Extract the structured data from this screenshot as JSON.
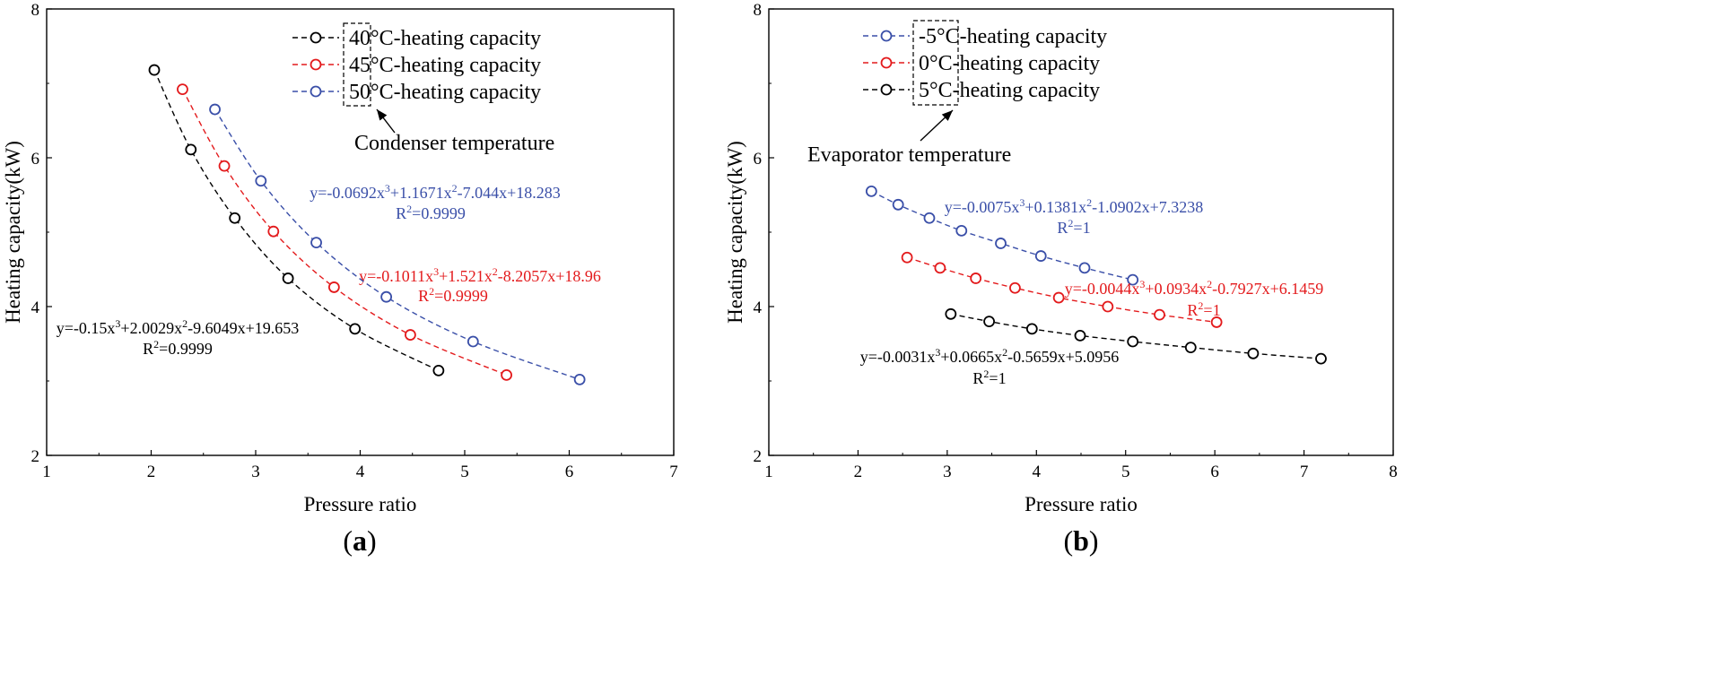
{
  "chart_data": [
    {
      "type": "scatter",
      "panel_label": "a",
      "xlabel": "Pressure ratio",
      "ylabel": "Heating capacity(kW)",
      "xlim": [
        1,
        7
      ],
      "ylim": [
        2,
        8
      ],
      "xticks": [
        "1",
        "2",
        "3",
        "4",
        "5",
        "6",
        "7"
      ],
      "yticks": [
        "2",
        "4",
        "6",
        "8"
      ],
      "grid": false,
      "legend_position": "top-center",
      "legend_group_label": "Condenser temperature",
      "series": [
        {
          "name": "40°C-heating capacity",
          "color": "#000000",
          "x": [
            2.03,
            2.38,
            2.8,
            3.31,
            3.95,
            4.75
          ],
          "y": [
            7.18,
            6.11,
            5.19,
            4.38,
            3.7,
            3.14
          ],
          "equation": "y=-0.15x³+2.0029x²-9.6049x+19.653",
          "r2": "R²=0.9999"
        },
        {
          "name": "45°C-heating capacity",
          "color": "#e31a1c",
          "x": [
            2.3,
            2.7,
            3.17,
            3.75,
            4.48,
            5.4
          ],
          "y": [
            6.92,
            5.89,
            5.01,
            4.26,
            3.62,
            3.08
          ],
          "equation": "y=-0.1011x³+1.521x²-8.2057x+18.96",
          "r2": "R²=0.9999"
        },
        {
          "name": "50°C-heating capacity",
          "color": "#3a4fa8",
          "x": [
            2.61,
            3.05,
            3.58,
            4.25,
            5.08,
            6.1
          ],
          "y": [
            6.65,
            5.69,
            4.86,
            4.13,
            3.53,
            3.02
          ],
          "equation": "y=-0.0692x³+1.1671x²-7.044x+18.283",
          "r2": "R²=0.9999"
        }
      ]
    },
    {
      "type": "scatter",
      "panel_label": "b",
      "xlabel": "Pressure ratio",
      "ylabel": "Heating capacity(kW)",
      "xlim": [
        1,
        8
      ],
      "ylim": [
        2,
        8
      ],
      "xticks": [
        "1",
        "2",
        "3",
        "4",
        "5",
        "6",
        "7",
        "8"
      ],
      "yticks": [
        "2",
        "4",
        "6",
        "8"
      ],
      "grid": false,
      "legend_position": "top-left",
      "legend_group_label": "Evaporator temperature",
      "series": [
        {
          "name": "-5°C-heating capacity",
          "color": "#3a4fa8",
          "x": [
            2.15,
            2.45,
            2.8,
            3.16,
            3.6,
            4.05,
            4.54,
            5.08
          ],
          "y": [
            5.55,
            5.37,
            5.19,
            5.02,
            4.85,
            4.68,
            4.52,
            4.36
          ],
          "equation": "y=-0.0075x³+0.1381x²-1.0902x+7.3238",
          "r2": "R²=1"
        },
        {
          "name": "0°C-heating capacity",
          "color": "#e31a1c",
          "x": [
            2.55,
            2.92,
            3.32,
            3.76,
            4.25,
            4.8,
            5.38,
            6.02
          ],
          "y": [
            4.66,
            4.52,
            4.38,
            4.25,
            4.12,
            4.0,
            3.89,
            3.79
          ],
          "equation": "y=-0.0044x³+0.0934x²-0.7927x+6.1459",
          "r2": "R²=1"
        },
        {
          "name": "5°C-heating capacity",
          "color": "#000000",
          "x": [
            3.04,
            3.47,
            3.95,
            4.49,
            5.08,
            5.73,
            6.43,
            7.19
          ],
          "y": [
            3.9,
            3.8,
            3.7,
            3.61,
            3.53,
            3.45,
            3.37,
            3.3
          ],
          "equation": "y=-0.0031x³+0.0665x²-0.5659x+5.0956",
          "r2": "R²=1"
        }
      ]
    }
  ]
}
